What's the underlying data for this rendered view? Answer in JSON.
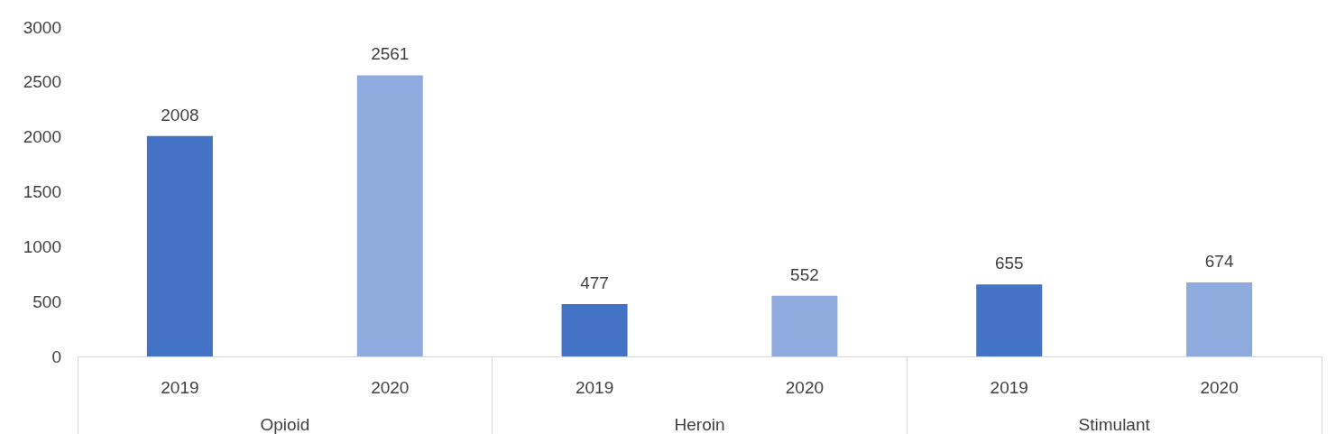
{
  "chart_data": {
    "type": "bar",
    "categories": [
      "Opioid",
      "Heroin",
      "Stimulant"
    ],
    "series": [
      {
        "name": "2019",
        "color": "#4472c4",
        "values": [
          2008,
          477,
          655
        ]
      },
      {
        "name": "2020",
        "color": "#8faadc",
        "values": [
          2561,
          552,
          674
        ]
      }
    ],
    "ylim": [
      0,
      3000
    ],
    "yticks": [
      0,
      500,
      1000,
      1500,
      2000,
      2500,
      3000
    ],
    "grid": false,
    "legend": false,
    "data_labels": true
  }
}
